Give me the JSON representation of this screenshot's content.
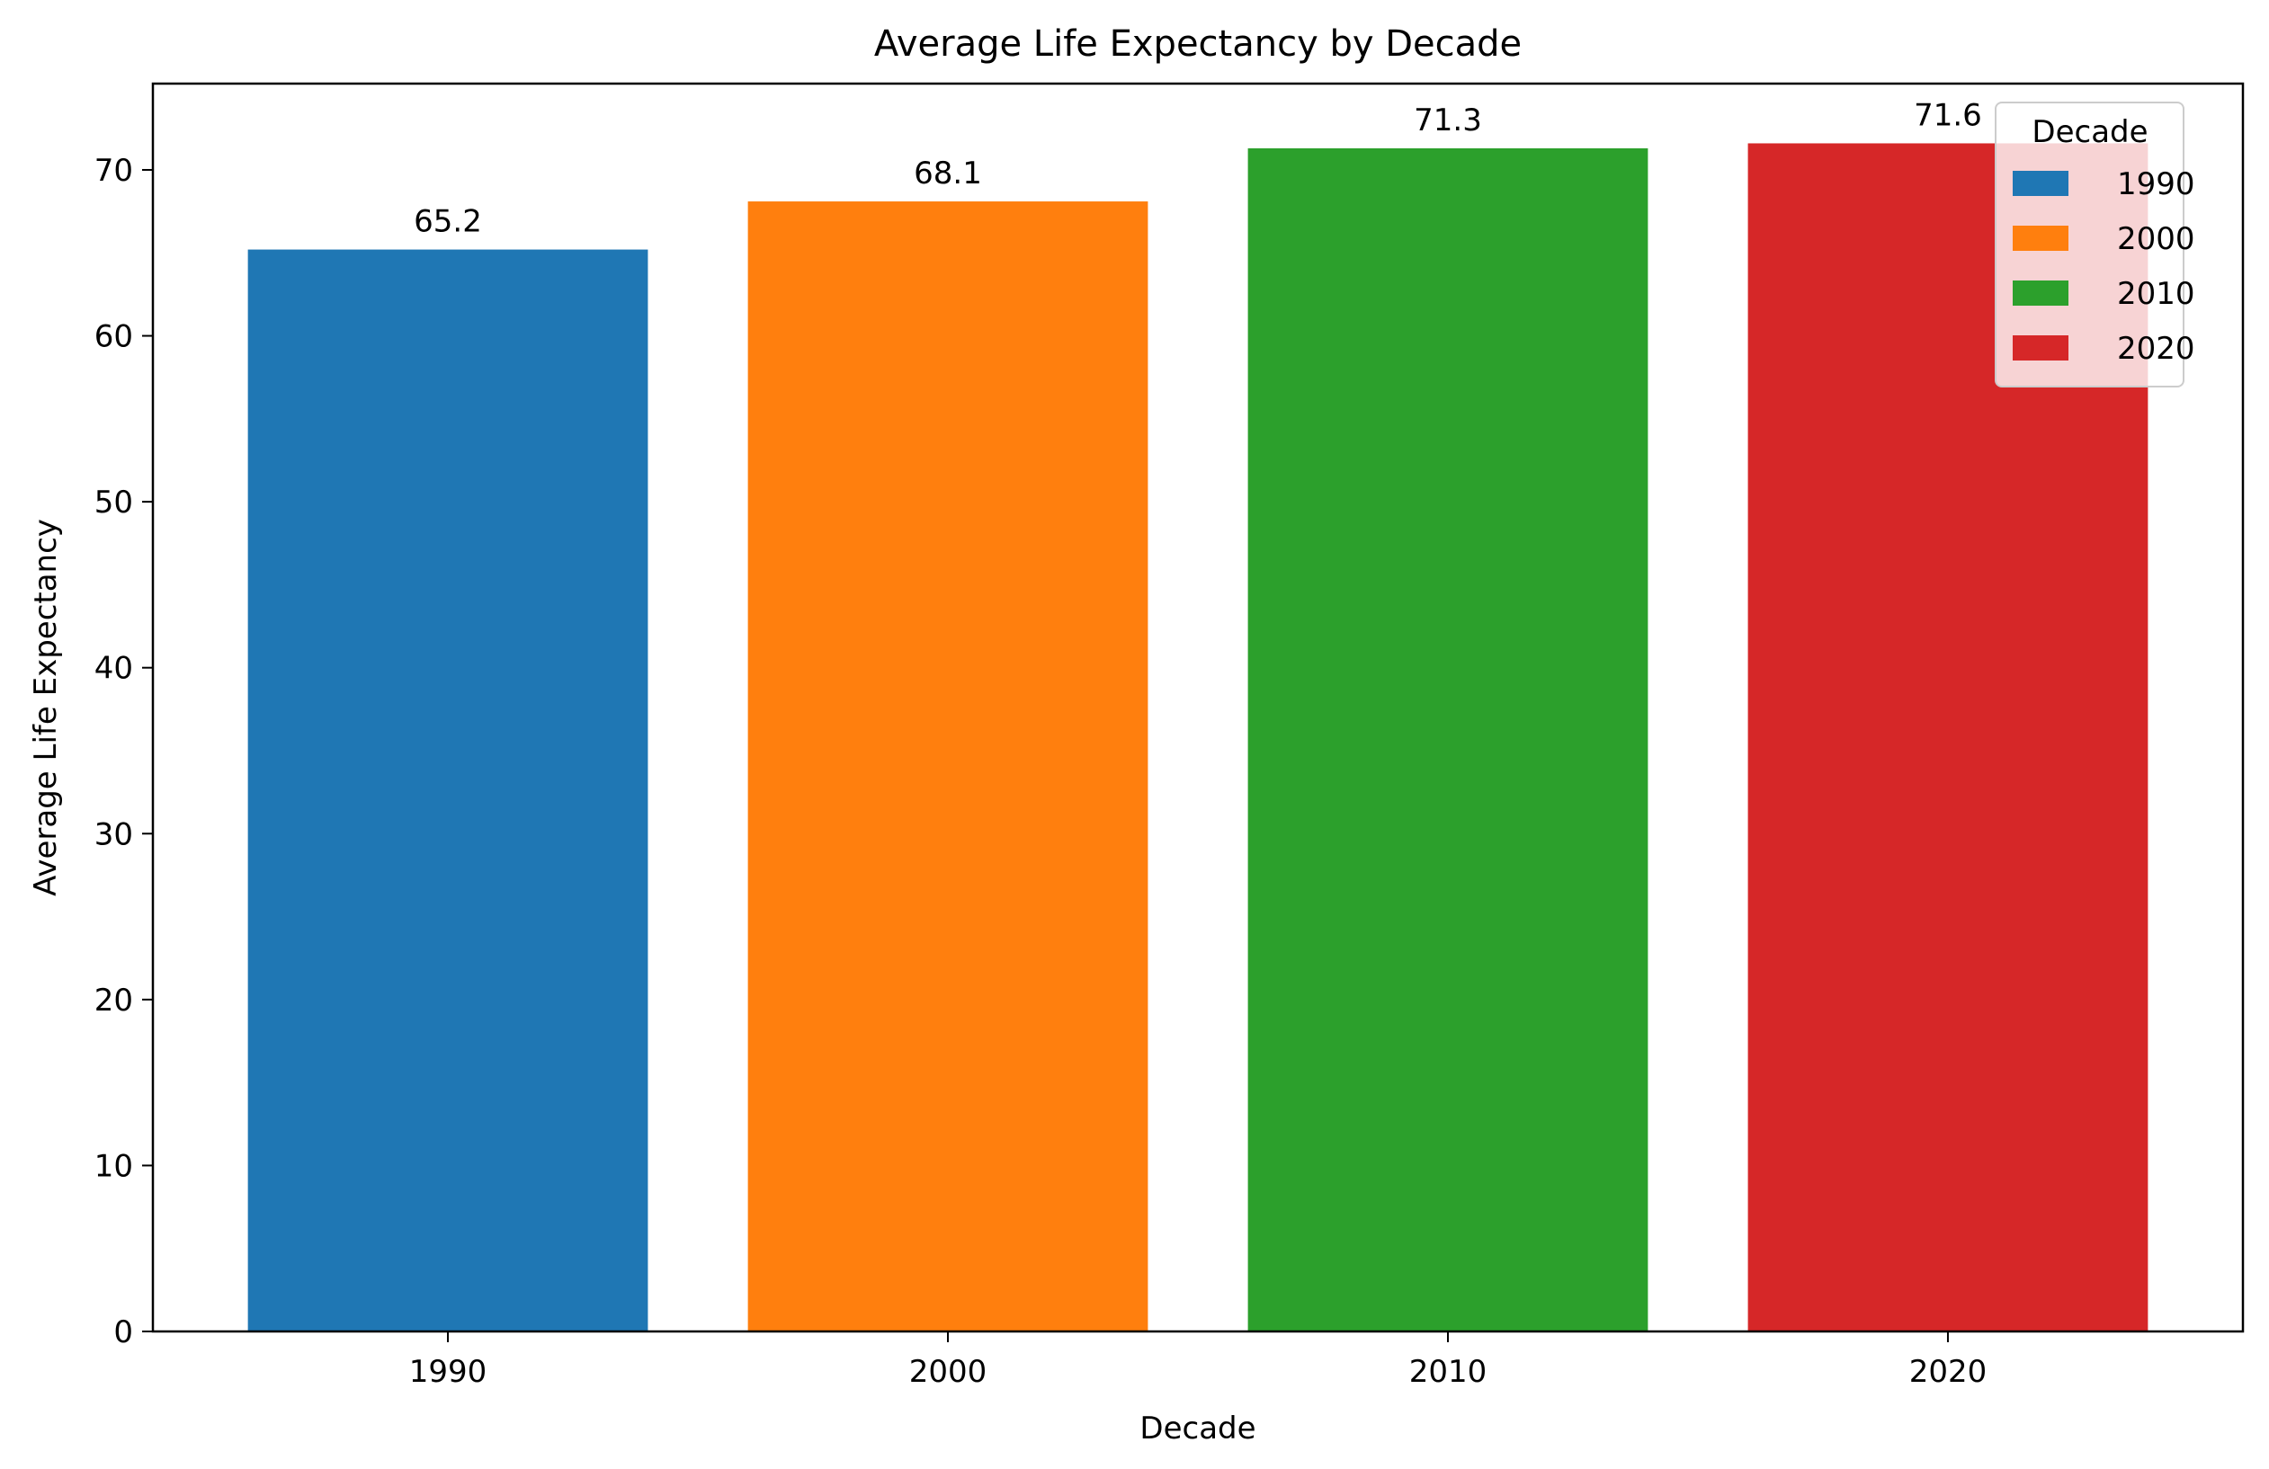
{
  "chart_data": {
    "type": "bar",
    "title": "Average Life Expectancy by Decade",
    "xlabel": "Decade",
    "ylabel": "Average Life Expectancy",
    "categories": [
      "1990",
      "2000",
      "2010",
      "2020"
    ],
    "values": [
      65.2,
      68.1,
      71.3,
      71.6
    ],
    "value_labels": [
      "65.2",
      "68.1",
      "71.3",
      "71.6"
    ],
    "colors": [
      "#1f77b4",
      "#ff7f0e",
      "#2ca02c",
      "#d62728"
    ],
    "ylim": [
      0,
      75.2
    ],
    "yticks": [
      0,
      10,
      20,
      30,
      40,
      50,
      60,
      70
    ],
    "ytick_labels": [
      "0",
      "10",
      "20",
      "30",
      "40",
      "50",
      "60",
      "70"
    ],
    "grid": false,
    "legend": {
      "title": "Decade",
      "placement": "upper right",
      "entries": [
        "1990",
        "2000",
        "2010",
        "2020"
      ]
    }
  }
}
